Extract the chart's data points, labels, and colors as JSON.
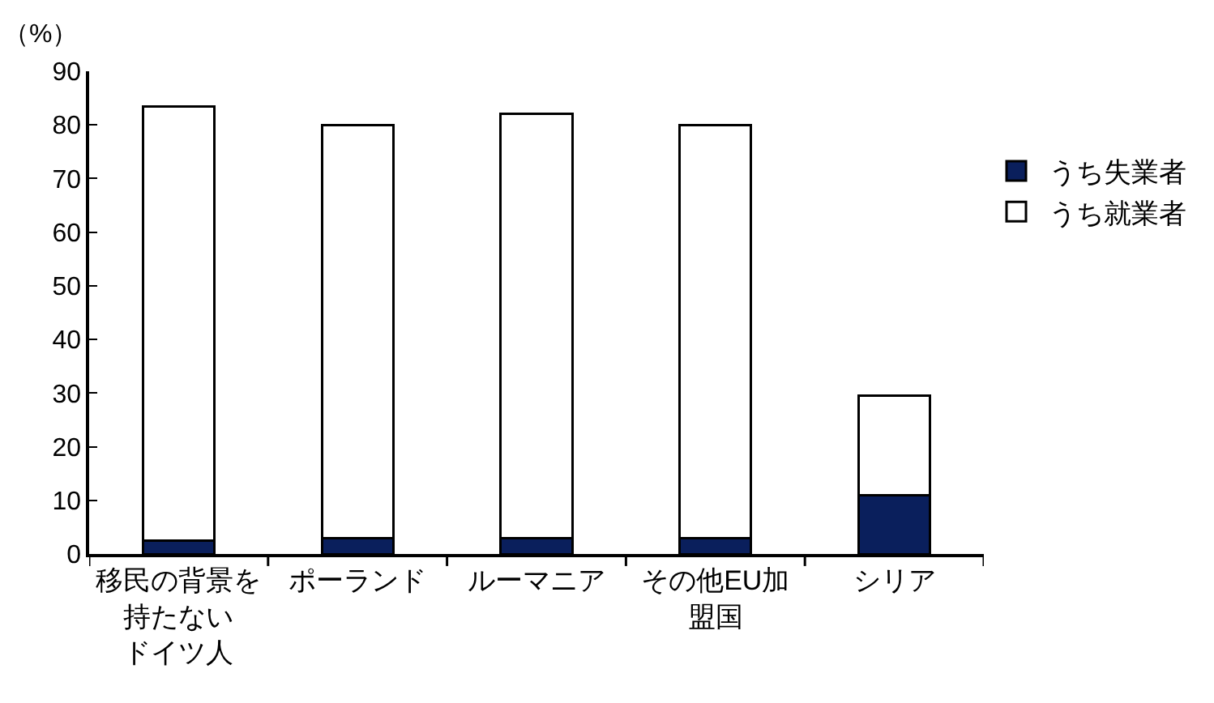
{
  "chart_data": {
    "type": "bar",
    "stacked": true,
    "ylabel": "（%）",
    "categories": [
      "移民の背景を持たないドイツ人",
      "ポーランド",
      "ルーマニア",
      "その他EU加盟国",
      "シリア"
    ],
    "series": [
      {
        "name": "うち失業者",
        "color": "#0a1f5c",
        "values": [
          2.5,
          3,
          3,
          3,
          11
        ]
      },
      {
        "name": "うち就業者",
        "color": "#ffffff",
        "values": [
          81,
          77,
          79,
          77,
          18.5
        ]
      }
    ],
    "ylim": [
      0,
      90
    ],
    "yticks": [
      0,
      10,
      20,
      30,
      40,
      50,
      60,
      70,
      80,
      90
    ],
    "grid": false,
    "legend": "right"
  }
}
